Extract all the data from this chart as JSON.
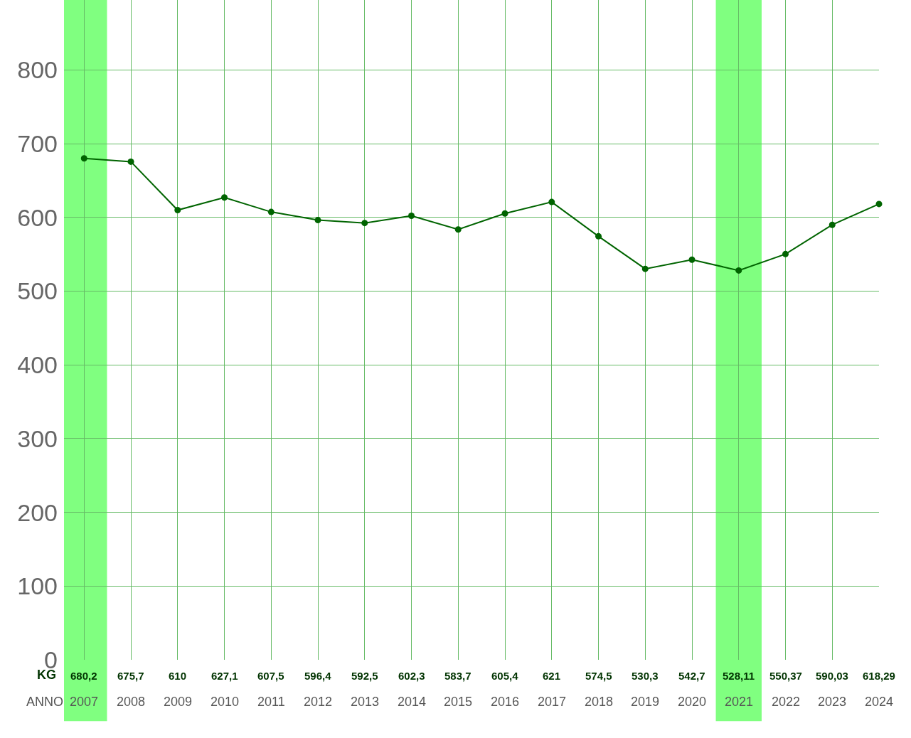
{
  "chart_data": {
    "type": "line",
    "xlabel": "ANNO",
    "ylabel": "KG",
    "categories": [
      "2007",
      "2008",
      "2009",
      "2010",
      "2011",
      "2012",
      "2013",
      "2014",
      "2015",
      "2016",
      "2017",
      "2018",
      "2019",
      "2020",
      "2021",
      "2022",
      "2023",
      "2024"
    ],
    "series": [
      {
        "color": "#006400",
        "values": [
          680.2,
          675.7,
          610,
          627.1,
          607.5,
          596.4,
          592.5,
          602.3,
          583.7,
          605.4,
          621,
          574.5,
          530.3,
          542.7,
          528.11,
          550.37,
          590.03,
          618.29
        ],
        "value_labels": [
          "680,2",
          "675,7",
          "610",
          "627,1",
          "607,5",
          "596,4",
          "592,5",
          "602,3",
          "583,7",
          "605,4",
          "621",
          "574,5",
          "530,3",
          "542,7",
          "528,11",
          "550,37",
          "590,03",
          "618,29"
        ]
      }
    ],
    "ylim": [
      0,
      895
    ],
    "yticks": [
      0,
      100,
      200,
      300,
      400,
      500,
      600,
      700,
      800
    ],
    "bands": [
      {
        "axis": "x",
        "from": "2007",
        "to": "2007",
        "color": "#80ff80"
      },
      {
        "axis": "x",
        "from": "2021",
        "to": "2021",
        "color": "#80ff80"
      }
    ],
    "grid": true,
    "legend": false,
    "marker": "circle",
    "line_style": "solid"
  }
}
